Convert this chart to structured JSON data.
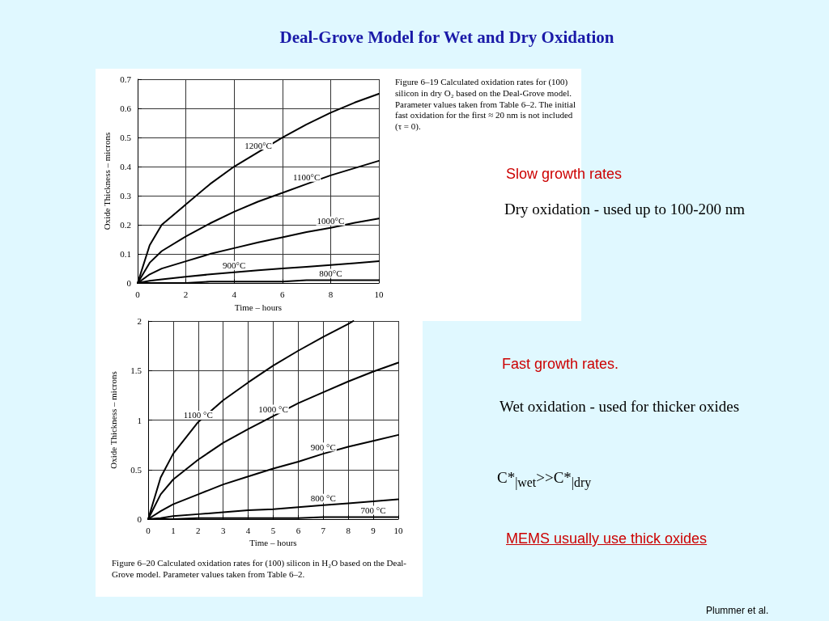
{
  "chart_data": [
    {
      "type": "line",
      "title": "Deal-Grove Model for Wet and Dry Oxidation",
      "xlabel": "Time – hours",
      "ylabel": "Oxide Thickness – microns",
      "x": [
        0,
        0.5,
        1,
        2,
        3,
        4,
        5,
        6,
        7,
        8,
        9,
        10
      ],
      "xlim": [
        0,
        10
      ],
      "xticks": [
        0,
        2,
        4,
        6,
        8,
        10
      ],
      "ylim": [
        0,
        0.7
      ],
      "yticks": [
        0,
        0.1,
        0.2,
        0.3,
        0.4,
        0.5,
        0.6,
        0.7
      ],
      "grid": true,
      "legend": false,
      "marker": "none",
      "line_style": "solid",
      "series": [
        {
          "name": "1200°C",
          "color": "#000000",
          "values": [
            0,
            0.13,
            0.2,
            0.27,
            0.34,
            0.4,
            0.45,
            0.5,
            0.545,
            0.585,
            0.62,
            0.65
          ]
        },
        {
          "name": "1100°C",
          "color": "#000000",
          "values": [
            0,
            0.07,
            0.11,
            0.16,
            0.205,
            0.245,
            0.28,
            0.31,
            0.34,
            0.37,
            0.395,
            0.42
          ]
        },
        {
          "name": "1000°C",
          "color": "#000000",
          "values": [
            0,
            0.03,
            0.05,
            0.075,
            0.1,
            0.12,
            0.14,
            0.157,
            0.175,
            0.19,
            0.207,
            0.222
          ]
        },
        {
          "name": "900°C",
          "color": "#000000",
          "values": [
            0,
            0.008,
            0.013,
            0.022,
            0.03,
            0.037,
            0.044,
            0.05,
            0.056,
            0.062,
            0.068,
            0.075
          ]
        },
        {
          "name": "800°C",
          "color": "#000000",
          "values": [
            0,
            0,
            0,
            0,
            0.005,
            0.005,
            0.005,
            0.005,
            0.01,
            0.01,
            0.01,
            0.01
          ]
        }
      ],
      "annotations": [
        "Figure 6–19 Calculated oxidation rates for (100) silicon in dry O₂ based on the Deal-Grove model. Parameter values taken from Table 6–2. The initial fast oxidation for the first ≈ 20 nm is not included (τ = 0).",
        "Slow growth rates",
        "Dry oxidation - used up to 100-200 nm"
      ]
    },
    {
      "type": "line",
      "xlabel": "Time – hours",
      "ylabel": "Oxide Thickness – microns",
      "x": [
        0,
        0.5,
        1,
        2,
        3,
        4,
        5,
        6,
        7,
        8,
        9,
        10
      ],
      "xlim": [
        0,
        10
      ],
      "xticks": [
        0,
        1,
        2,
        3,
        4,
        5,
        6,
        7,
        8,
        9,
        10
      ],
      "ylim": [
        0,
        2
      ],
      "yticks": [
        0,
        0.5,
        1,
        1.5,
        2
      ],
      "grid": true,
      "legend": false,
      "marker": "none",
      "line_style": "solid",
      "series": [
        {
          "name": "1100 °C",
          "color": "#000000",
          "x": [
            0,
            0.5,
            1,
            2,
            3,
            4,
            5,
            6,
            7,
            8,
            8.2
          ],
          "values": [
            0,
            0.42,
            0.66,
            0.98,
            1.2,
            1.38,
            1.55,
            1.7,
            1.84,
            1.97,
            2.0
          ]
        },
        {
          "name": "1000 °C",
          "color": "#000000",
          "values": [
            0,
            0.25,
            0.4,
            0.6,
            0.77,
            0.91,
            1.04,
            1.17,
            1.28,
            1.39,
            1.49,
            1.58
          ]
        },
        {
          "name": "900 °C",
          "color": "#000000",
          "values": [
            0,
            0.08,
            0.15,
            0.25,
            0.35,
            0.43,
            0.51,
            0.58,
            0.66,
            0.73,
            0.79,
            0.85
          ]
        },
        {
          "name": "800 °C",
          "color": "#000000",
          "values": [
            0,
            0.01,
            0.03,
            0.05,
            0.07,
            0.09,
            0.1,
            0.12,
            0.14,
            0.16,
            0.18,
            0.2
          ]
        },
        {
          "name": "700 °C",
          "color": "#000000",
          "values": [
            0,
            0,
            0,
            0.01,
            0.01,
            0.01,
            0.01,
            0.01,
            0.02,
            0.02,
            0.02,
            0.02
          ]
        }
      ],
      "annotations": [
        "Figure 6–20 Calculated oxidation rates for (100) silicon in H₂O based on the Deal-Grove model. Parameter values taken from Table 6–2.",
        "Fast growth rates.",
        "Wet oxidation - used for thicker oxides",
        "C*$_{|wet}$>>C*$_{|dry}$",
        "MEMS usually use thick oxides",
        "Plummer et al."
      ]
    }
  ]
}
